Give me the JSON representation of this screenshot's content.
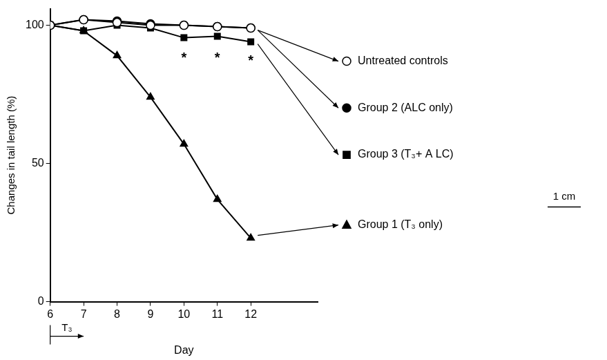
{
  "chart_data": {
    "type": "line",
    "x": [
      6,
      7,
      8,
      9,
      10,
      11,
      12
    ],
    "xlim": [
      6,
      14
    ],
    "xticks": [
      6,
      7,
      8,
      9,
      10,
      11,
      12
    ],
    "ylim": [
      0,
      106
    ],
    "yticks": [
      0,
      50,
      100
    ],
    "x_label": "Day",
    "y_label": "Changes in tail length (%)",
    "grid": false,
    "legend": "right",
    "series": [
      {
        "name": "Untreated controls",
        "color": "#000000",
        "marker": "circle_open",
        "line_style": "solid",
        "values": [
          100,
          102,
          101,
          100,
          100,
          99.5,
          99
        ]
      },
      {
        "name": "Group 2 (ALC only)",
        "color": "#000000",
        "marker": "circle",
        "line_style": "solid",
        "values": [
          100,
          102,
          101.5,
          100.5,
          100,
          99.5,
          99
        ]
      },
      {
        "name": "Group 3 (T₃+ A LC)",
        "color": "#000000",
        "marker": "square",
        "line_style": "solid",
        "values": [
          100,
          98,
          100,
          99,
          95.5,
          96,
          94
        ]
      },
      {
        "name": "Group 1 (T₃ only)",
        "color": "#000000",
        "marker": "triangle",
        "line_style": "solid",
        "values": [
          100,
          98,
          89,
          74,
          57,
          37,
          23
        ]
      }
    ],
    "annotations": [
      {
        "text": "*",
        "x": 10,
        "y": 89
      },
      {
        "text": "*",
        "x": 11,
        "y": 89
      },
      {
        "text": "*",
        "x": 12,
        "y": 88
      },
      {
        "text": "T₃",
        "x_start": 6,
        "x_end": 7
      },
      {
        "text": "1 cm"
      }
    ]
  }
}
